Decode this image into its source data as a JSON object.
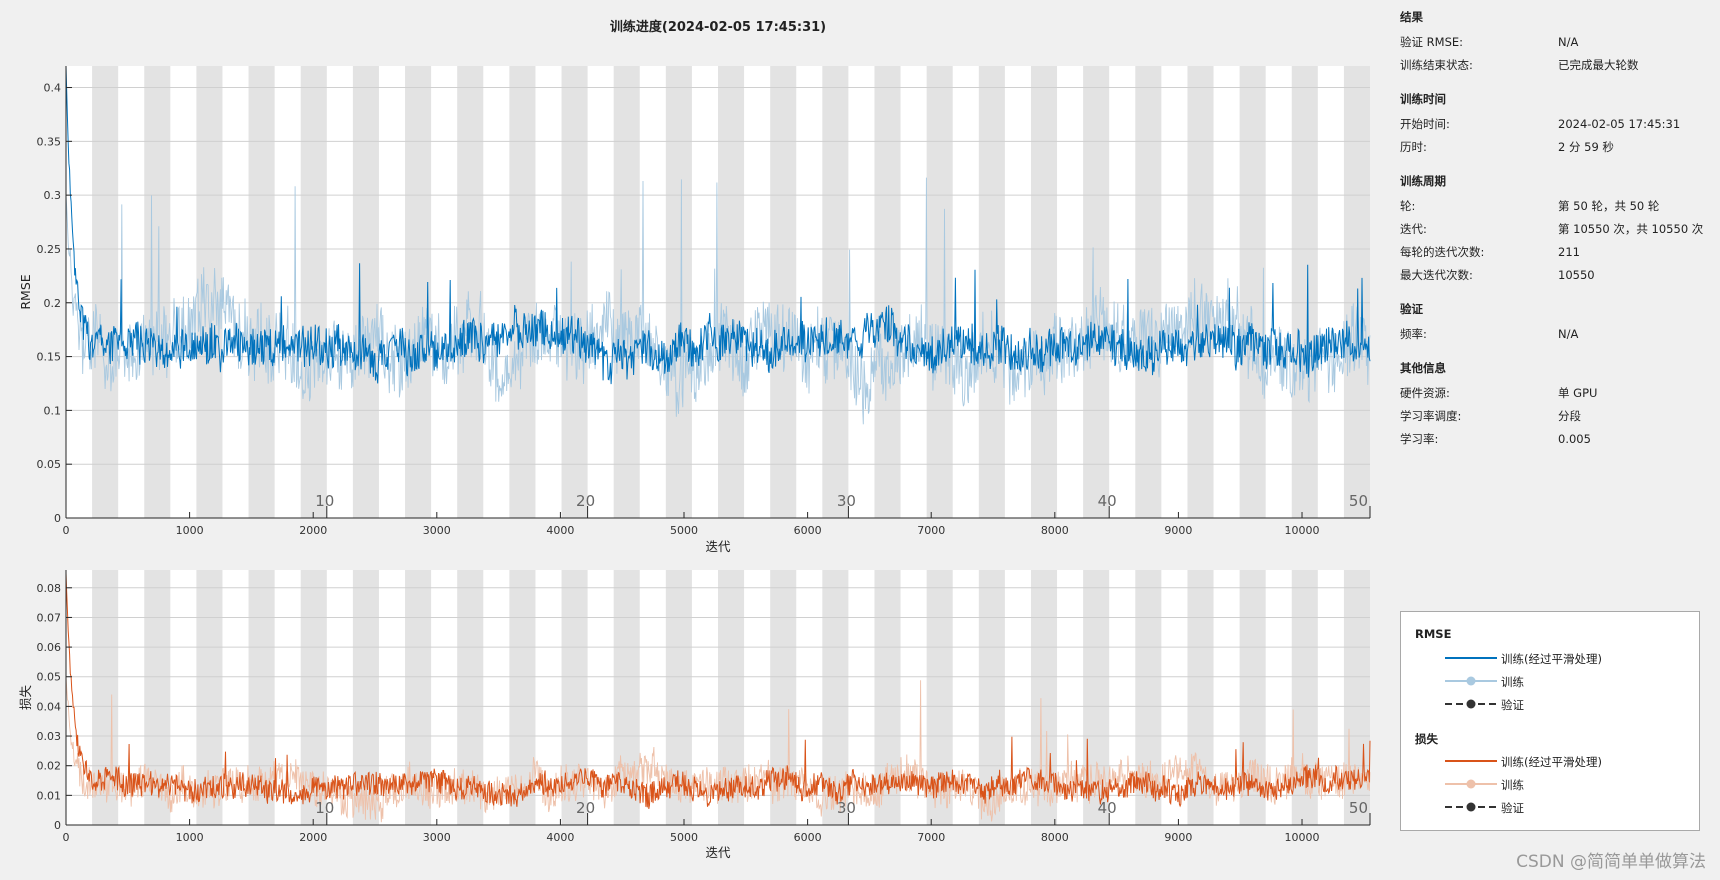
{
  "title": "训练进度(2024-02-05 17:45:31)",
  "watermark": "CSDN @简简单单做算法",
  "info": {
    "results": {
      "heading": "结果",
      "rows": [
        {
          "key": "验证 RMSE:",
          "value": "N/A"
        },
        {
          "key": "训练结束状态:",
          "value": "已完成最大轮数"
        }
      ]
    },
    "time": {
      "heading": "训练时间",
      "rows": [
        {
          "key": "开始时间:",
          "value": "2024-02-05 17:45:31"
        },
        {
          "key": "历时:",
          "value": "2 分 59 秒"
        }
      ]
    },
    "cycle": {
      "heading": "训练周期",
      "rows": [
        {
          "key": "轮:",
          "value": "第 50 轮，共 50 轮"
        },
        {
          "key": "迭代:",
          "value": "第 10550 次，共 10550 次"
        },
        {
          "key": "每轮的迭代次数:",
          "value": "211"
        },
        {
          "key": "最大迭代次数:",
          "value": "10550"
        }
      ]
    },
    "validation": {
      "heading": "验证",
      "rows": [
        {
          "key": "频率:",
          "value": "N/A"
        }
      ]
    },
    "other": {
      "heading": "其他信息",
      "rows": [
        {
          "key": "硬件资源:",
          "value": "单 GPU"
        },
        {
          "key": "学习率调度:",
          "value": "分段"
        },
        {
          "key": "学习率:",
          "value": "0.005"
        }
      ]
    }
  },
  "legend": {
    "rmse_heading": "RMSE",
    "rmse_items": [
      "训练(经过平滑处理)",
      "训练",
      "验证"
    ],
    "loss_heading": "损失",
    "loss_items": [
      "训练(经过平滑处理)",
      "训练",
      "验证"
    ]
  },
  "colors": {
    "rmse_smoothed": "#0072bd",
    "rmse_raw": "#a9c9e0",
    "loss_smoothed": "#d95319",
    "loss_raw": "#eec1aa",
    "validation": "#333333",
    "epoch_band": "#e3e3e3"
  },
  "chart_data": [
    {
      "type": "line",
      "title": "",
      "xlabel": "迭代",
      "ylabel": "RMSE",
      "xlim": [
        0,
        10550
      ],
      "ylim": [
        0,
        0.42
      ],
      "xticks": [
        0,
        1000,
        2000,
        3000,
        4000,
        5000,
        6000,
        7000,
        8000,
        9000,
        10000
      ],
      "yticks": [
        0,
        0.05,
        0.1,
        0.15,
        0.2,
        0.25,
        0.3,
        0.35,
        0.4
      ],
      "ytick_labels": [
        "0",
        "0.05",
        "0.1",
        "0.15",
        "0.2",
        "0.25",
        "0.3",
        "0.35",
        "0.4"
      ],
      "epochs": {
        "iterations_per_epoch": 211,
        "count": 50,
        "labeled": [
          10,
          20,
          30,
          40,
          50
        ]
      },
      "series": [
        {
          "name": "训练(经过平滑处理)",
          "start": 0.42,
          "mean": 0.158,
          "spread": 0.018,
          "spike_max": 0.24
        },
        {
          "name": "训练",
          "start": 0.3,
          "mean": 0.158,
          "spread": 0.032,
          "spike_max": 0.32
        }
      ]
    },
    {
      "type": "line",
      "title": "",
      "xlabel": "迭代",
      "ylabel": "损失",
      "xlim": [
        0,
        10550
      ],
      "ylim": [
        0,
        0.086
      ],
      "xticks": [
        0,
        1000,
        2000,
        3000,
        4000,
        5000,
        6000,
        7000,
        8000,
        9000,
        10000
      ],
      "yticks": [
        0,
        0.01,
        0.02,
        0.03,
        0.04,
        0.05,
        0.06,
        0.07,
        0.08
      ],
      "ytick_labels": [
        "0",
        "0.01",
        "0.02",
        "0.03",
        "0.04",
        "0.05",
        "0.06",
        "0.07",
        "0.08"
      ],
      "epochs": {
        "iterations_per_epoch": 211,
        "count": 50,
        "labeled": [
          10,
          20,
          30,
          40,
          50
        ]
      },
      "series": [
        {
          "name": "训练(经过平滑处理)",
          "start": 0.085,
          "mean": 0.0135,
          "spread": 0.004,
          "spike_max": 0.03
        },
        {
          "name": "训练",
          "start": 0.05,
          "mean": 0.0135,
          "spread": 0.006,
          "spike_max": 0.05
        }
      ]
    }
  ]
}
